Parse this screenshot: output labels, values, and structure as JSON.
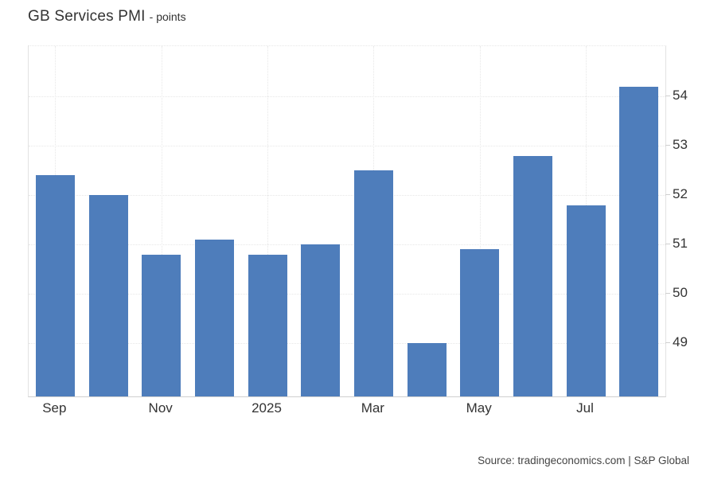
{
  "header": {
    "title": "GB Services PMI",
    "subtitle": "- points"
  },
  "footer": {
    "source": "Source: tradingeconomics.com | S&P Global"
  },
  "chart_data": {
    "type": "bar",
    "title": "GB Services PMI",
    "ylabel": "points",
    "categories": [
      "Sep 2024",
      "Oct 2024",
      "Nov 2024",
      "Dec 2024",
      "Jan 2025",
      "Feb 2025",
      "Mar 2025",
      "Apr 2025",
      "May 2025",
      "Jun 2025",
      "Jul 2025",
      "Aug 2025"
    ],
    "values": [
      52.4,
      52.0,
      50.8,
      51.1,
      50.8,
      51.0,
      52.5,
      49.0,
      50.9,
      52.8,
      51.8,
      54.2
    ],
    "x_tick_labels": [
      "Sep",
      "Nov",
      "2025",
      "Mar",
      "May",
      "Jul"
    ],
    "x_tick_indices": [
      0,
      2,
      4,
      6,
      8,
      10
    ],
    "y_ticks": [
      49,
      50,
      51,
      52,
      53,
      54
    ],
    "ylim": [
      47.92,
      55.02
    ],
    "y_axis_side": "right",
    "grid": true,
    "legend_position": "none",
    "bar_color": "#4e7dbb",
    "gridline_color": "#e7e7e7",
    "axis_line_color": "#cfcfcf",
    "label_color": "#333333"
  }
}
